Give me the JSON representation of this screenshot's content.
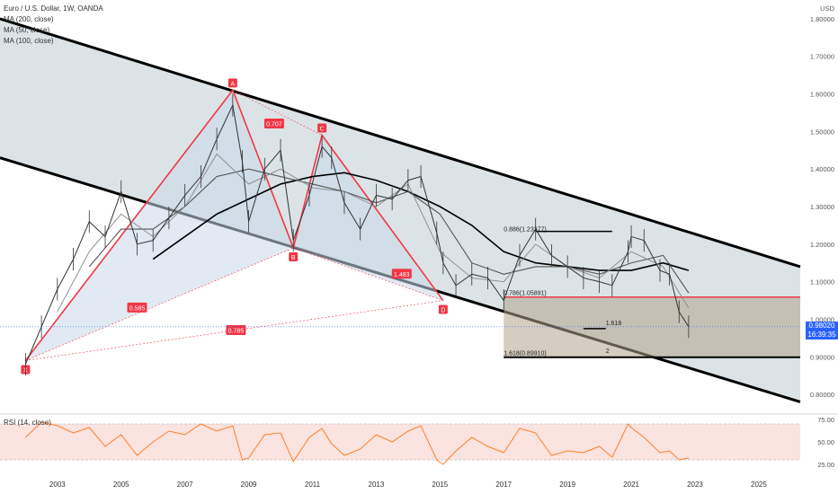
{
  "header": {
    "title": "Euro / U.S. Dollar, 1W, OANDA",
    "indicators": [
      "MA (200, close)",
      "MA (50, close)",
      "MA (100, close)"
    ],
    "currency": "USD"
  },
  "price_axis": {
    "current_price": "0.98020",
    "countdown": "16:39:35"
  },
  "rsi": {
    "label": "RSI (14, close)",
    "ticks": [
      "75.00",
      "50.00",
      "25.00"
    ],
    "upper": 70,
    "lower": 30
  },
  "colors": {
    "channel_fill": "#d7e0e3",
    "pattern_fill": "#c9d9e8",
    "pattern_line": "#f23645",
    "rsi_line": "#ff7f27",
    "rsi_band": "#f9d7d3",
    "price_line": "#333333",
    "target_zone": "#b3a48c"
  },
  "chart_data": {
    "type": "line",
    "title": "Euro / U.S. Dollar, 1W, OANDA",
    "xlabel": "",
    "ylabel": "USD",
    "x_ticks": [
      "2003",
      "2005",
      "2007",
      "2009",
      "2011",
      "2013",
      "2015",
      "2017",
      "2019",
      "2021",
      "2023",
      "2025"
    ],
    "y_ticks": [
      "1.80000",
      "1.70000",
      "1.60000",
      "1.50000",
      "1.40000",
      "1.30000",
      "1.20000",
      "1.10000",
      "1.00000",
      "0.90000",
      "0.80000"
    ],
    "ylim": [
      0.75,
      1.85
    ],
    "xlim": [
      2001.2,
      2026.3
    ],
    "grid": false,
    "series": [
      {
        "x": [
          2002.0,
          2002.5,
          2003.0,
          2003.5,
          2004.0,
          2004.5,
          2005.0,
          2005.5,
          2006.0,
          2006.5,
          2007.0,
          2007.5,
          2008.0,
          2008.5,
          2008.8,
          2009.0,
          2009.5,
          2010.0,
          2010.4,
          2010.9,
          2011.3,
          2011.6,
          2012.0,
          2012.5,
          2013.0,
          2013.5,
          2014.0,
          2014.4,
          2014.9,
          2015.1,
          2015.5,
          2016.0,
          2016.5,
          2017.0,
          2017.5,
          2018.0,
          2018.5,
          2019.0,
          2019.5,
          2020.0,
          2020.4,
          2020.9,
          2021.0,
          2021.4,
          2021.9,
          2022.2,
          2022.5,
          2022.8
        ],
        "values": [
          0.88,
          0.98,
          1.08,
          1.16,
          1.26,
          1.22,
          1.34,
          1.2,
          1.21,
          1.27,
          1.33,
          1.38,
          1.48,
          1.57,
          1.42,
          1.26,
          1.4,
          1.45,
          1.21,
          1.33,
          1.46,
          1.43,
          1.31,
          1.24,
          1.33,
          1.32,
          1.37,
          1.38,
          1.23,
          1.15,
          1.09,
          1.12,
          1.11,
          1.05,
          1.17,
          1.24,
          1.17,
          1.14,
          1.11,
          1.1,
          1.09,
          1.18,
          1.22,
          1.21,
          1.13,
          1.12,
          1.02,
          0.98
        ]
      }
    ],
    "moving_averages": [
      {
        "name": "MA (200, close)",
        "x": [
          2006.0,
          2007.0,
          2008.0,
          2009.0,
          2010.0,
          2011.0,
          2012.0,
          2013.0,
          2014.0,
          2015.0,
          2016.0,
          2017.0,
          2018.0,
          2019.0,
          2020.0,
          2021.0,
          2022.0,
          2022.8
        ],
        "values": [
          1.16,
          1.22,
          1.28,
          1.32,
          1.36,
          1.38,
          1.39,
          1.37,
          1.34,
          1.3,
          1.25,
          1.18,
          1.15,
          1.14,
          1.13,
          1.13,
          1.15,
          1.13
        ]
      },
      {
        "name": "MA (100, close)",
        "x": [
          2004.0,
          2005.0,
          2006.0,
          2007.0,
          2008.0,
          2009.0,
          2010.0,
          2011.0,
          2012.0,
          2013.0,
          2014.0,
          2015.0,
          2016.0,
          2017.0,
          2018.0,
          2019.0,
          2020.0,
          2021.0,
          2022.0,
          2022.8
        ],
        "values": [
          1.14,
          1.24,
          1.24,
          1.3,
          1.38,
          1.4,
          1.38,
          1.36,
          1.34,
          1.31,
          1.34,
          1.28,
          1.15,
          1.12,
          1.14,
          1.14,
          1.12,
          1.15,
          1.17,
          1.07
        ]
      },
      {
        "name": "MA (50, close)",
        "x": [
          2003.0,
          2004.0,
          2005.0,
          2006.0,
          2007.0,
          2008.0,
          2009.0,
          2010.0,
          2011.0,
          2012.0,
          2013.0,
          2014.0,
          2015.0,
          2016.0,
          2017.0,
          2018.0,
          2019.0,
          2020.0,
          2021.0,
          2022.0,
          2022.8
        ],
        "values": [
          1.02,
          1.18,
          1.28,
          1.22,
          1.3,
          1.44,
          1.36,
          1.4,
          1.35,
          1.34,
          1.3,
          1.36,
          1.18,
          1.11,
          1.1,
          1.2,
          1.14,
          1.11,
          1.18,
          1.14,
          1.03
        ]
      }
    ],
    "harmonic_pattern": {
      "points": [
        {
          "label": "X",
          "x": 2002.0,
          "y": 0.89
        },
        {
          "label": "A",
          "x": 2008.5,
          "y": 1.61
        },
        {
          "label": "B",
          "x": 2010.4,
          "y": 1.19
        },
        {
          "label": "C",
          "x": 2011.3,
          "y": 1.49
        },
        {
          "label": "D",
          "x": 2015.1,
          "y": 1.05
        }
      ],
      "ratio_labels": [
        {
          "text": "0.707",
          "x": 2009.8,
          "y": 1.52
        },
        {
          "text": "0.585",
          "x": 2005.5,
          "y": 1.03
        },
        {
          "text": "1.483",
          "x": 2013.8,
          "y": 1.12
        },
        {
          "text": "0.785",
          "x": 2008.6,
          "y": 0.97
        }
      ]
    },
    "channel": {
      "upper": [
        [
          2001.2,
          1.8
        ],
        [
          2026.3,
          1.14
        ]
      ],
      "lower": [
        [
          2001.2,
          1.43
        ],
        [
          2026.3,
          0.78
        ]
      ]
    },
    "annotations": [
      {
        "text": "0.886(1.23377)",
        "x": 2017.0,
        "y": 1.23
      },
      {
        "text": "0.786(1.05891)",
        "x": 2017.0,
        "y": 1.06
      },
      {
        "text": "1.618",
        "x": 2020.2,
        "y": 0.98
      },
      {
        "text": "1.618(0.89910)",
        "x": 2017.0,
        "y": 0.9
      },
      {
        "text": "2",
        "x": 2020.2,
        "y": 0.905
      }
    ],
    "rsi_series": {
      "name": "RSI (14, close)",
      "x": [
        2002.0,
        2002.5,
        2003.0,
        2003.5,
        2004.0,
        2004.5,
        2005.0,
        2005.5,
        2006.0,
        2006.5,
        2007.0,
        2007.5,
        2008.0,
        2008.5,
        2008.8,
        2009.0,
        2009.5,
        2010.0,
        2010.4,
        2010.9,
        2011.3,
        2011.6,
        2012.0,
        2012.5,
        2013.0,
        2013.5,
        2014.0,
        2014.4,
        2014.9,
        2015.1,
        2015.5,
        2016.0,
        2016.5,
        2017.0,
        2017.5,
        2018.0,
        2018.5,
        2019.0,
        2019.5,
        2020.0,
        2020.4,
        2020.9,
        2021.0,
        2021.4,
        2021.9,
        2022.2,
        2022.5,
        2022.8
      ],
      "values": [
        55,
        72,
        68,
        60,
        66,
        45,
        58,
        35,
        50,
        62,
        58,
        70,
        62,
        68,
        30,
        32,
        58,
        60,
        28,
        55,
        65,
        48,
        35,
        42,
        58,
        50,
        62,
        68,
        30,
        25,
        40,
        55,
        45,
        38,
        65,
        60,
        35,
        40,
        38,
        45,
        33,
        70,
        66,
        55,
        38,
        40,
        30,
        32
      ]
    }
  }
}
